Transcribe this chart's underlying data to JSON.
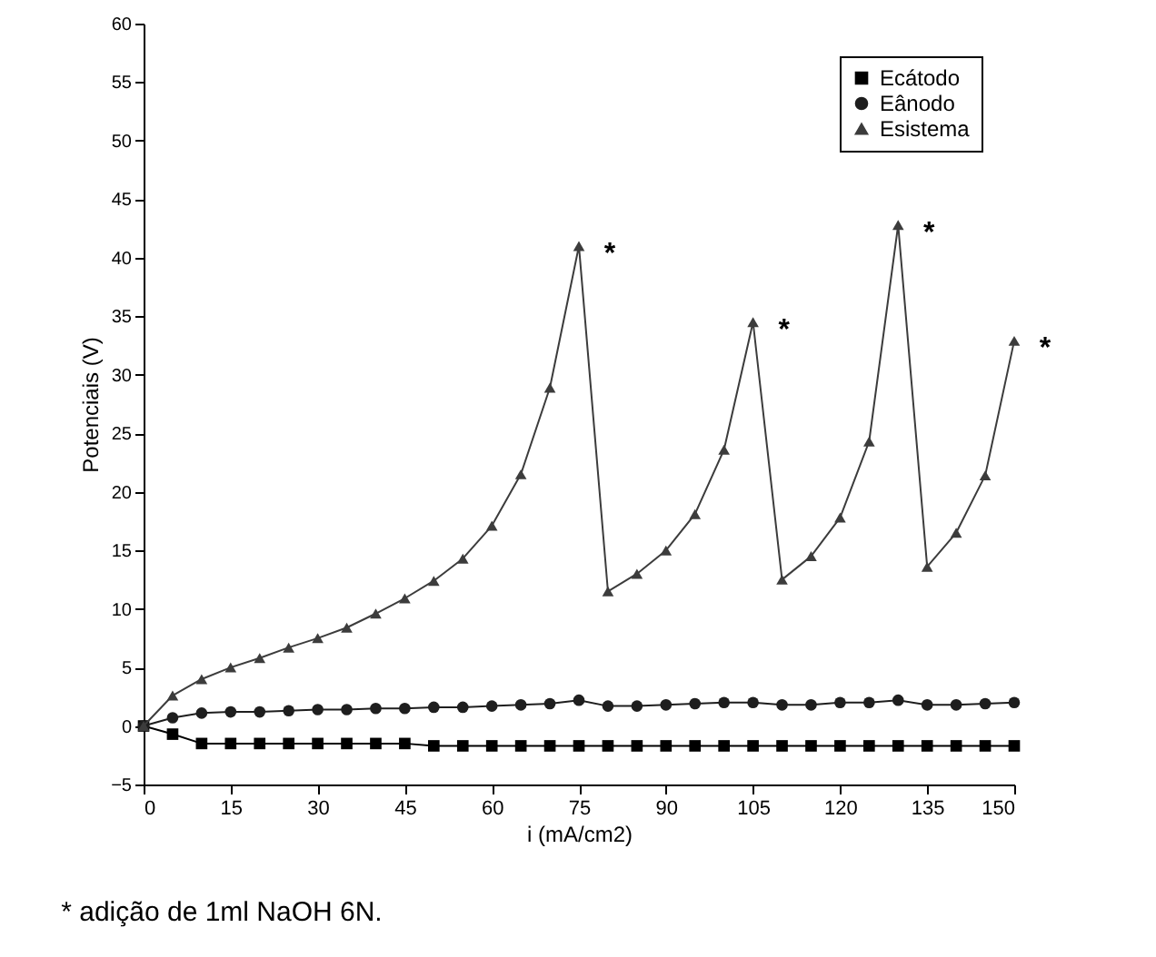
{
  "chart_data": {
    "type": "line",
    "xlabel": "i (mA/cm2)",
    "ylabel": "Potenciais (V)",
    "x": [
      0,
      5,
      10,
      15,
      20,
      25,
      30,
      35,
      40,
      45,
      50,
      55,
      60,
      65,
      70,
      75,
      80,
      85,
      90,
      95,
      100,
      105,
      110,
      115,
      120,
      125,
      130,
      135,
      140,
      145,
      150
    ],
    "series": [
      {
        "name": "Ecátodo",
        "color": "#000000",
        "marker": "square",
        "values": [
          0,
          -0.7,
          -1.5,
          -1.5,
          -1.5,
          -1.5,
          -1.5,
          -1.5,
          -1.5,
          -1.5,
          -1.7,
          -1.7,
          -1.7,
          -1.7,
          -1.7,
          -1.7,
          -1.7,
          -1.7,
          -1.7,
          -1.7,
          -1.7,
          -1.7,
          -1.7,
          -1.7,
          -1.7,
          -1.7,
          -1.7,
          -1.7,
          -1.7,
          -1.7,
          -1.7
        ]
      },
      {
        "name": "Eânodo",
        "color": "#1e1e1e",
        "marker": "circle",
        "values": [
          0,
          0.7,
          1.1,
          1.2,
          1.2,
          1.3,
          1.4,
          1.4,
          1.5,
          1.5,
          1.6,
          1.6,
          1.7,
          1.8,
          1.9,
          2.2,
          1.7,
          1.7,
          1.8,
          1.9,
          2.0,
          2.0,
          1.8,
          1.8,
          2.0,
          2.0,
          2.2,
          1.8,
          1.8,
          1.9,
          2.0
        ]
      },
      {
        "name": "Esistema",
        "color": "#3c3c3c",
        "marker": "triangle",
        "values": [
          0,
          2.6,
          4.0,
          5.0,
          5.8,
          6.7,
          7.5,
          8.4,
          9.6,
          10.9,
          12.4,
          14.3,
          17.1,
          21.5,
          28.9,
          41.0,
          11.5,
          13.0,
          15.0,
          18.1,
          23.6,
          34.5,
          12.5,
          14.5,
          17.8,
          24.3,
          42.8,
          13.6,
          16.5,
          21.4,
          32.9
        ]
      }
    ],
    "xlim": [
      0,
      150
    ],
    "xticks": [
      0,
      15,
      30,
      45,
      60,
      75,
      90,
      105,
      120,
      135,
      150
    ],
    "ylim": [
      -5,
      60
    ],
    "yticks": [
      -5,
      0,
      5,
      10,
      15,
      20,
      25,
      30,
      35,
      40,
      45,
      50,
      55,
      60
    ],
    "grid": false,
    "legend": "top right",
    "line_style": "solid",
    "annotations": [
      {
        "text": "*",
        "x": 75,
        "y": 41.0
      },
      {
        "text": "*",
        "x": 105,
        "y": 34.5
      },
      {
        "text": "*",
        "x": 130,
        "y": 42.8
      },
      {
        "text": "*",
        "x": 150,
        "y": 32.9
      },
      "* adição de 1ml NaOH 6N."
    ]
  }
}
